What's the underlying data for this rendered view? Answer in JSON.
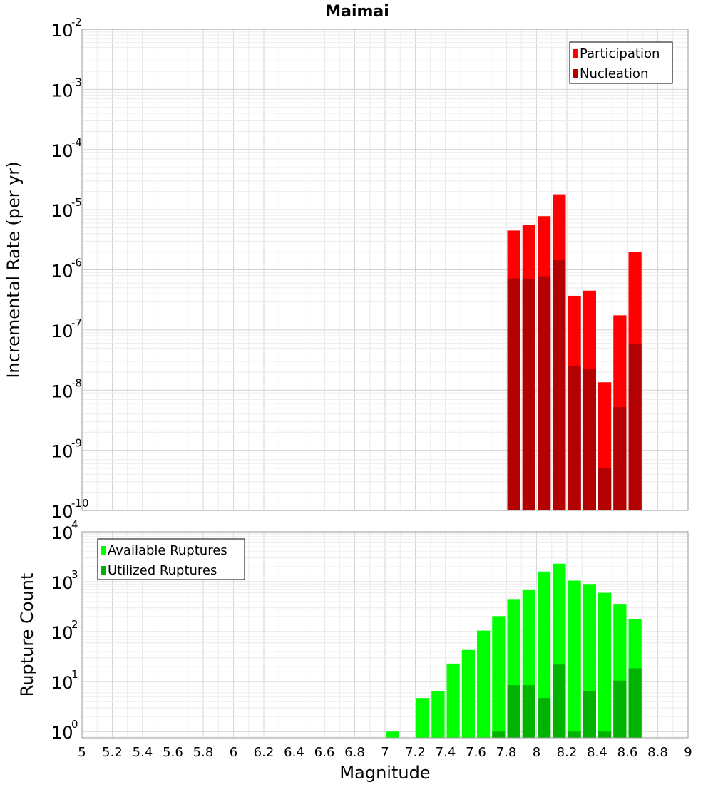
{
  "chart_data": [
    {
      "type": "bar",
      "panel": "top",
      "title": "Maimai",
      "ylabel": "Incremental Rate (per yr)",
      "xlabel": "",
      "yscale": "log",
      "ylim": [
        1e-10,
        0.01
      ],
      "xlim": [
        5,
        9
      ],
      "bar_width": 0.1,
      "grid": true,
      "legend_position": "top-right",
      "y_ticks": [
        {
          "exp": -10,
          "base": "10",
          "sup": "-10"
        },
        {
          "exp": -9,
          "base": "10",
          "sup": "-9"
        },
        {
          "exp": -8,
          "base": "10",
          "sup": "-8"
        },
        {
          "exp": -7,
          "base": "10",
          "sup": "-7"
        },
        {
          "exp": -6,
          "base": "10",
          "sup": "-6"
        },
        {
          "exp": -5,
          "base": "10",
          "sup": "-5"
        },
        {
          "exp": -4,
          "base": "10",
          "sup": "-4"
        },
        {
          "exp": -3,
          "base": "10",
          "sup": "-3"
        },
        {
          "exp": -2,
          "base": "10",
          "sup": "-2"
        }
      ],
      "x": [
        7.85,
        7.95,
        8.05,
        8.15,
        8.25,
        8.35,
        8.45,
        8.55,
        8.65
      ],
      "series": [
        {
          "name": "Participation",
          "color": "#ff0000",
          "values": [
            4.5e-06,
            5.5e-06,
            7.8e-06,
            1.8e-05,
            3.7e-07,
            4.5e-07,
            1.35e-08,
            1.75e-07,
            2e-06
          ]
        },
        {
          "name": "Nucleation",
          "color": "#b30000",
          "values": [
            7.2e-07,
            7e-07,
            7.8e-07,
            1.45e-06,
            2.5e-08,
            2.25e-08,
            5e-10,
            5.2e-09,
            5.8e-08
          ]
        }
      ]
    },
    {
      "type": "bar",
      "panel": "bottom",
      "title": "",
      "ylabel": "Rupture Count",
      "xlabel": "Magnitude",
      "yscale": "log",
      "ylim": [
        0.75,
        10000
      ],
      "xlim": [
        5,
        9
      ],
      "bar_width": 0.1,
      "grid": true,
      "legend_position": "top-left",
      "y_ticks": [
        {
          "exp": 0,
          "base": "10",
          "sup": "0"
        },
        {
          "exp": 1,
          "base": "10",
          "sup": "1"
        },
        {
          "exp": 2,
          "base": "10",
          "sup": "2"
        },
        {
          "exp": 3,
          "base": "10",
          "sup": "3"
        },
        {
          "exp": 4,
          "base": "10",
          "sup": "4"
        }
      ],
      "x_ticks": [
        "5",
        "5.2",
        "5.4",
        "5.6",
        "5.8",
        "6",
        "6.2",
        "6.4",
        "6.6",
        "6.8",
        "7",
        "7.2",
        "7.4",
        "7.6",
        "7.8",
        "8",
        "8.2",
        "8.4",
        "8.6",
        "8.8",
        "9"
      ],
      "x": [
        7.05,
        7.25,
        7.35,
        7.45,
        7.55,
        7.65,
        7.75,
        7.85,
        7.95,
        8.05,
        8.15,
        8.25,
        8.35,
        8.45,
        8.55,
        8.65
      ],
      "series": [
        {
          "name": "Available Ruptures",
          "color": "#00ff00",
          "values": [
            1,
            4.7,
            6.5,
            23,
            43,
            105,
            205,
            450,
            700,
            1600,
            2300,
            1050,
            900,
            600,
            360,
            180
          ]
        },
        {
          "name": "Utilized Ruptures",
          "color": "#00b300",
          "values": [
            0,
            0,
            0,
            0,
            0,
            0,
            1,
            8.5,
            8.5,
            4.7,
            22,
            1,
            6.5,
            1,
            10.5,
            18.5
          ]
        }
      ]
    }
  ]
}
